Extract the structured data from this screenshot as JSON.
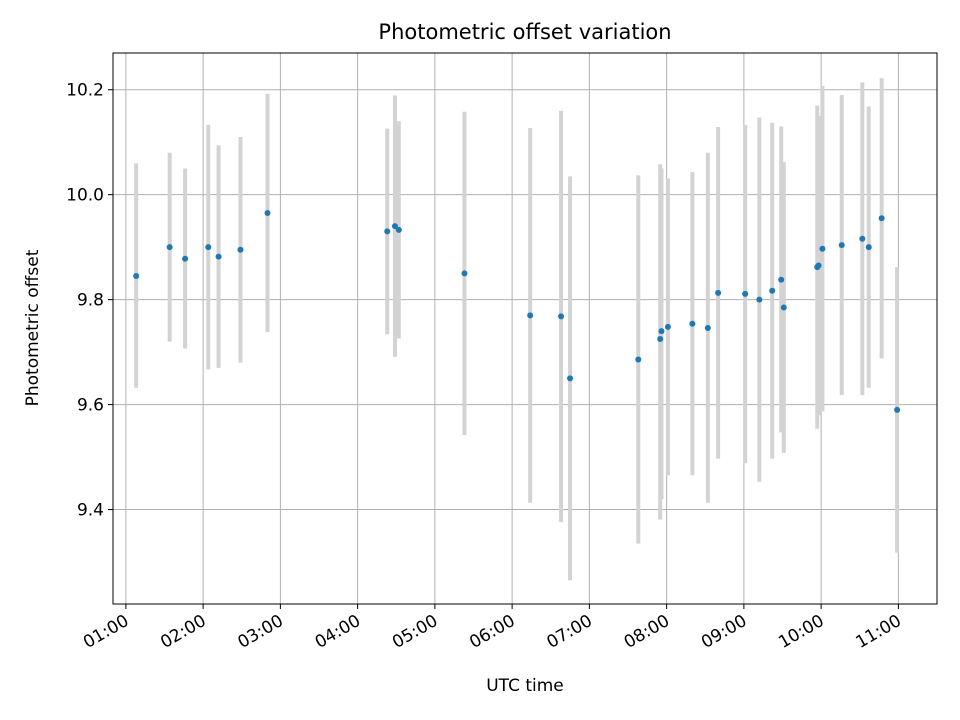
{
  "chart_data": {
    "type": "scatter",
    "title": "Photometric offset variation",
    "xlabel": "UTC time",
    "ylabel": "Photometric offset",
    "x_tick_labels": [
      "01:00",
      "02:00",
      "03:00",
      "04:00",
      "05:00",
      "06:00",
      "07:00",
      "08:00",
      "09:00",
      "10:00",
      "11:00"
    ],
    "y_tick_labels": [
      "9.4",
      "9.6",
      "9.8",
      "10.0",
      "10.2"
    ],
    "xlim": [
      "00:50",
      "11:30"
    ],
    "ylim": [
      9.22,
      10.27
    ],
    "grid": true,
    "colors": {
      "point": "#1f77b4",
      "error_bar": "#d3d3d3",
      "grid": "#b0b0b0"
    },
    "series": [
      {
        "points": [
          {
            "x": "01:08",
            "y": 9.845,
            "lo": 9.632,
            "hi": 10.06
          },
          {
            "x": "01:34",
            "y": 9.9,
            "lo": 9.72,
            "hi": 10.08
          },
          {
            "x": "01:46",
            "y": 9.878,
            "lo": 9.707,
            "hi": 10.05
          },
          {
            "x": "02:04",
            "y": 9.9,
            "lo": 9.667,
            "hi": 10.133
          },
          {
            "x": "02:12",
            "y": 9.882,
            "lo": 9.67,
            "hi": 10.094
          },
          {
            "x": "02:29",
            "y": 9.895,
            "lo": 9.68,
            "hi": 10.11
          },
          {
            "x": "02:50",
            "y": 9.965,
            "lo": 9.738,
            "hi": 10.192
          },
          {
            "x": "04:23",
            "y": 9.93,
            "lo": 9.734,
            "hi": 10.126
          },
          {
            "x": "04:29",
            "y": 9.94,
            "lo": 9.691,
            "hi": 10.189
          },
          {
            "x": "04:32",
            "y": 9.933,
            "lo": 9.726,
            "hi": 10.14
          },
          {
            "x": "05:23",
            "y": 9.85,
            "lo": 9.542,
            "hi": 10.158
          },
          {
            "x": "06:14",
            "y": 9.77,
            "lo": 9.413,
            "hi": 10.127
          },
          {
            "x": "06:38",
            "y": 9.768,
            "lo": 9.376,
            "hi": 10.16
          },
          {
            "x": "06:45",
            "y": 9.65,
            "lo": 9.265,
            "hi": 10.035
          },
          {
            "x": "07:38",
            "y": 9.686,
            "lo": 9.335,
            "hi": 10.037
          },
          {
            "x": "07:55",
            "y": 9.725,
            "lo": 9.381,
            "hi": 10.058
          },
          {
            "x": "07:56",
            "y": 9.74,
            "lo": 9.42,
            "hi": 10.05
          },
          {
            "x": "08:01",
            "y": 9.748,
            "lo": 9.465,
            "hi": 10.031
          },
          {
            "x": "08:20",
            "y": 9.754,
            "lo": 9.465,
            "hi": 10.043
          },
          {
            "x": "08:32",
            "y": 9.746,
            "lo": 9.413,
            "hi": 10.08
          },
          {
            "x": "08:40",
            "y": 9.813,
            "lo": 9.497,
            "hi": 10.129
          },
          {
            "x": "09:01",
            "y": 9.811,
            "lo": 9.489,
            "hi": 10.133
          },
          {
            "x": "09:12",
            "y": 9.8,
            "lo": 9.453,
            "hi": 10.147
          },
          {
            "x": "09:22",
            "y": 9.817,
            "lo": 9.497,
            "hi": 10.137
          },
          {
            "x": "09:29",
            "y": 9.838,
            "lo": 9.547,
            "hi": 10.13
          },
          {
            "x": "09:31",
            "y": 9.785,
            "lo": 9.508,
            "hi": 10.062
          },
          {
            "x": "09:57",
            "y": 9.862,
            "lo": 9.554,
            "hi": 10.17
          },
          {
            "x": "09:58",
            "y": 9.865,
            "lo": 9.58,
            "hi": 10.15
          },
          {
            "x": "10:01",
            "y": 9.897,
            "lo": 9.587,
            "hi": 10.207
          },
          {
            "x": "10:16",
            "y": 9.904,
            "lo": 9.618,
            "hi": 10.19
          },
          {
            "x": "10:32",
            "y": 9.916,
            "lo": 9.618,
            "hi": 10.214
          },
          {
            "x": "10:37",
            "y": 9.9,
            "lo": 9.632,
            "hi": 10.168
          },
          {
            "x": "10:47",
            "y": 9.955,
            "lo": 9.688,
            "hi": 10.222
          },
          {
            "x": "10:59",
            "y": 9.59,
            "lo": 9.318,
            "hi": 9.862
          }
        ]
      }
    ]
  }
}
